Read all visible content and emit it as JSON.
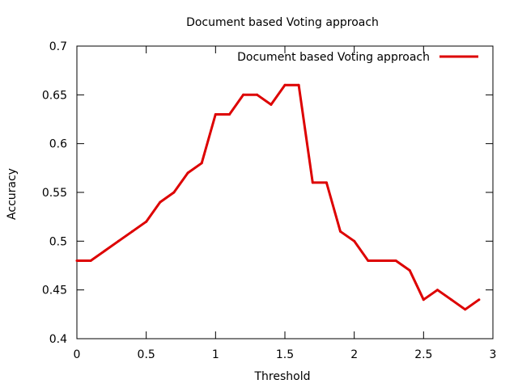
{
  "chart_data": {
    "type": "line",
    "title": "Document based Voting approach",
    "xlabel": "Threshold",
    "ylabel": "Accuracy",
    "xlim": [
      0,
      3
    ],
    "ylim": [
      0.4,
      0.7
    ],
    "xticks": [
      0,
      0.5,
      1,
      1.5,
      2,
      2.5,
      3
    ],
    "xtick_labels": [
      "0",
      "0.5",
      "1",
      "1.5",
      "2",
      "2.5",
      "3"
    ],
    "yticks": [
      0.4,
      0.45,
      0.5,
      0.55,
      0.6,
      0.65,
      0.7
    ],
    "ytick_labels": [
      "0.4",
      "0.45",
      "0.5",
      "0.55",
      "0.6",
      "0.65",
      "0.7"
    ],
    "grid": false,
    "legend_position": "top-right",
    "series": [
      {
        "name": "Document based Voting approach",
        "color": "#dd0000",
        "x": [
          0,
          0.1,
          0.2,
          0.3,
          0.4,
          0.5,
          0.6,
          0.7,
          0.8,
          0.9,
          1.0,
          1.1,
          1.2,
          1.3,
          1.4,
          1.5,
          1.6,
          1.7,
          1.8,
          1.9,
          2.0,
          2.1,
          2.2,
          2.3,
          2.4,
          2.5,
          2.6,
          2.7,
          2.8,
          2.9
        ],
        "values": [
          0.48,
          0.48,
          0.49,
          0.5,
          0.51,
          0.52,
          0.54,
          0.55,
          0.57,
          0.58,
          0.63,
          0.63,
          0.65,
          0.65,
          0.64,
          0.66,
          0.66,
          0.56,
          0.56,
          0.51,
          0.5,
          0.48,
          0.48,
          0.48,
          0.47,
          0.44,
          0.45,
          0.44,
          0.43,
          0.44
        ]
      }
    ]
  }
}
